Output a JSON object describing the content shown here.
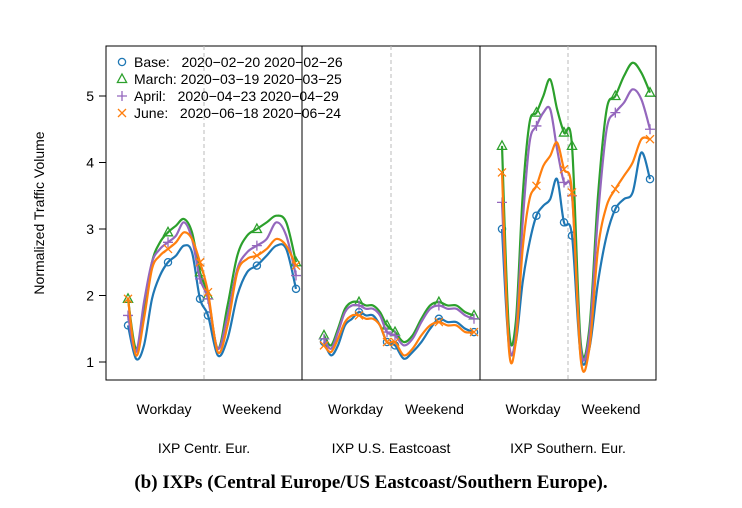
{
  "caption": "(b) IXPs (Central Europe/US Eastcoast/Southern Europe).",
  "chart_data": {
    "type": "line",
    "ylabel": "Normalized Traffic Volume",
    "ylim": [
      0.8,
      5.8
    ],
    "yticks": [
      1,
      2,
      3,
      4,
      5
    ],
    "grid": false,
    "legend_position": "top-left",
    "panels": [
      {
        "name": "IXP Centr. Eur.",
        "segments": [
          "Workday",
          "Weekend"
        ]
      },
      {
        "name": "IXP U.S. Eastcoast",
        "segments": [
          "Workday",
          "Weekend"
        ]
      },
      {
        "name": "IXP Southern. Eur.",
        "segments": [
          "Workday",
          "Weekend"
        ]
      }
    ],
    "x_points_per_segment": 10,
    "series": [
      {
        "name": "Base:   2020−02−20 2020−02−26",
        "color": "#1f77b4",
        "marker": "circle",
        "values": [
          [
            1.55,
            1.05,
            1.25,
            1.95,
            2.3,
            2.5,
            2.6,
            2.75,
            2.65,
            1.95,
            1.7,
            1.1,
            1.35,
            2.0,
            2.35,
            2.45,
            2.6,
            2.75,
            2.7,
            2.1
          ],
          [
            1.3,
            1.1,
            1.25,
            1.55,
            1.65,
            1.75,
            1.7,
            1.7,
            1.55,
            1.3,
            1.25,
            1.05,
            1.15,
            1.3,
            1.5,
            1.65,
            1.6,
            1.6,
            1.5,
            1.45
          ],
          [
            3.0,
            1.25,
            1.3,
            2.2,
            2.8,
            3.2,
            3.35,
            3.45,
            3.75,
            3.1,
            2.9,
            1.1,
            1.2,
            2.2,
            2.9,
            3.3,
            3.45,
            3.55,
            4.15,
            3.75
          ]
        ]
      },
      {
        "name": "March: 2020−03−19 2020−03−25",
        "color": "#2ca02c",
        "marker": "triangle",
        "values": [
          [
            1.95,
            1.2,
            1.75,
            2.5,
            2.8,
            2.95,
            3.05,
            3.15,
            2.95,
            2.35,
            2.0,
            1.2,
            1.85,
            2.6,
            2.9,
            3.0,
            3.1,
            3.2,
            3.1,
            2.5
          ],
          [
            1.4,
            1.25,
            1.5,
            1.8,
            1.9,
            1.9,
            1.85,
            1.85,
            1.75,
            1.55,
            1.45,
            1.3,
            1.4,
            1.65,
            1.85,
            1.9,
            1.85,
            1.85,
            1.75,
            1.7
          ],
          [
            4.25,
            1.5,
            1.6,
            3.5,
            4.6,
            4.75,
            5.0,
            5.25,
            4.8,
            4.45,
            4.25,
            1.3,
            1.5,
            3.5,
            4.8,
            5.0,
            5.3,
            5.5,
            5.35,
            5.05
          ]
        ]
      },
      {
        "name": "April:   2020−04−23 2020−04−29",
        "color": "#9467bd",
        "marker": "plus",
        "values": [
          [
            1.7,
            1.15,
            1.9,
            2.5,
            2.7,
            2.8,
            2.9,
            3.1,
            2.85,
            2.25,
            1.95,
            1.2,
            1.7,
            2.4,
            2.65,
            2.75,
            2.85,
            3.1,
            2.9,
            2.3
          ],
          [
            1.35,
            1.2,
            1.45,
            1.75,
            1.85,
            1.85,
            1.8,
            1.8,
            1.7,
            1.45,
            1.4,
            1.25,
            1.35,
            1.6,
            1.8,
            1.85,
            1.8,
            1.8,
            1.7,
            1.65
          ],
          [
            3.4,
            1.3,
            1.4,
            3.1,
            4.3,
            4.55,
            4.75,
            4.8,
            4.2,
            3.7,
            3.5,
            1.2,
            1.4,
            3.2,
            4.5,
            4.75,
            4.9,
            5.1,
            4.95,
            4.5
          ]
        ]
      },
      {
        "name": "June:   2020−06−18 2020−06−24",
        "color": "#ff7f0e",
        "marker": "cross",
        "values": [
          [
            1.95,
            1.1,
            1.65,
            2.4,
            2.6,
            2.7,
            2.8,
            2.95,
            2.85,
            2.5,
            2.05,
            1.15,
            1.55,
            2.35,
            2.55,
            2.6,
            2.7,
            2.85,
            2.75,
            2.45
          ],
          [
            1.25,
            1.15,
            1.35,
            1.6,
            1.7,
            1.7,
            1.65,
            1.65,
            1.55,
            1.3,
            1.3,
            1.1,
            1.2,
            1.4,
            1.55,
            1.6,
            1.55,
            1.55,
            1.45,
            1.45
          ],
          [
            3.85,
            1.2,
            1.3,
            2.7,
            3.45,
            3.65,
            3.95,
            4.1,
            4.3,
            3.9,
            3.55,
            1.05,
            1.2,
            2.7,
            3.35,
            3.6,
            3.8,
            4.0,
            4.35,
            4.35
          ]
        ]
      }
    ]
  }
}
